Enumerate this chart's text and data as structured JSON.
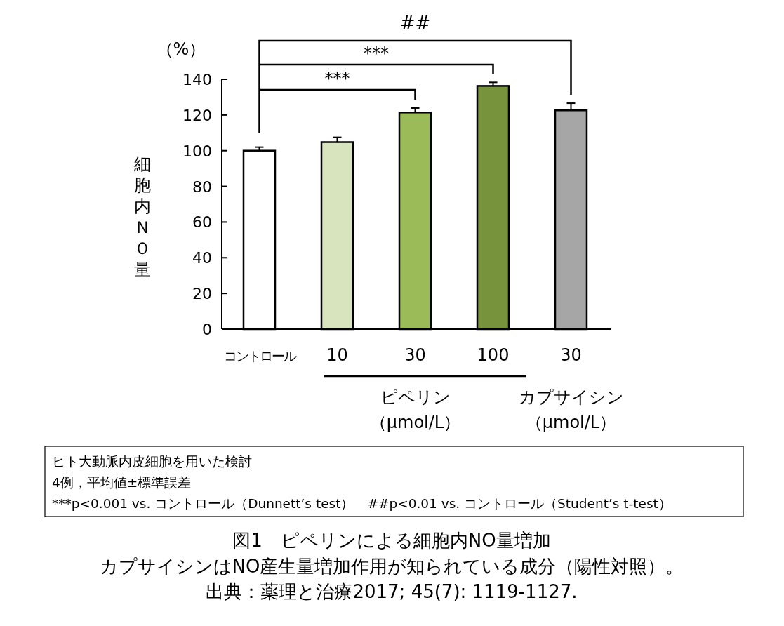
{
  "chart_data": {
    "type": "bar",
    "title": "図1　ピペリンによる細胞内NO量増加",
    "subtitle": "カプサイシンはNO産生量増加作用が知られている成分（陽性対照）。",
    "ylabel": "細胞内ＮＯ量",
    "categories": [
      "コントロール",
      "10",
      "30",
      "100",
      "30"
    ],
    "values": [
      100,
      104.8,
      121.4,
      136.3,
      122.6
    ],
    "errors": [
      2,
      2.7,
      2.5,
      2,
      4
    ],
    "colors": [
      "#ffffff",
      "#d7e4bd",
      "#9bbb59",
      "#77933c",
      "#a6a6a6"
    ],
    "ylim": [
      0,
      140
    ],
    "yticks": [
      0,
      20,
      40,
      60,
      80,
      100,
      120,
      140
    ],
    "grid": false,
    "annotations": [
      "（%）",
      "***",
      "***",
      "##",
      "ピペリン",
      "（μmol/L）",
      "カプサイシン",
      "（μmol/L）",
      "ヒト大動脈内皮細胞を用いた検討",
      "4例，平均値±標準誤差",
      "***p<0.001 vs. コントロール（Dunnett’s test）　##p<0.01 vs. コントロール（Student’s t-test）",
      "出典：薬理と治療2017; 45(7): 1119-1127."
    ]
  }
}
